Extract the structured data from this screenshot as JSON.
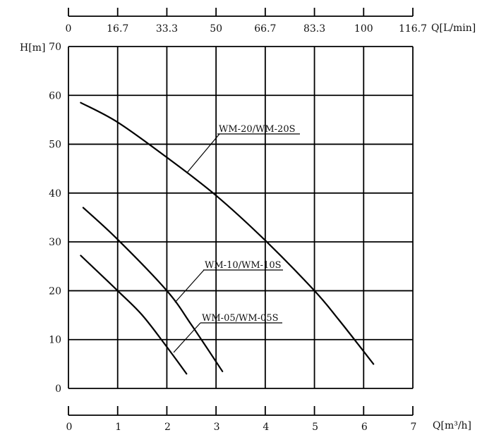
{
  "chart_data": {
    "type": "line",
    "xlabel": "Q[m³/h]",
    "x2label": "Q[L/min]",
    "ylabel": "H[m]",
    "xlim": [
      0,
      7
    ],
    "ylim": [
      0,
      70
    ],
    "grid": true,
    "x_ticks": [
      "0",
      "1",
      "2",
      "3",
      "4",
      "5",
      "6",
      "7"
    ],
    "x2_ticks": [
      "0",
      "16.7",
      "33.3",
      "50",
      "66.7",
      "83.3",
      "100",
      "116.7"
    ],
    "y_ticks": [
      "0",
      "10",
      "20",
      "30",
      "40",
      "50",
      "60",
      "70"
    ],
    "series": [
      {
        "name": "WM-20/WM-20S",
        "x": [
          0.25,
          1.0,
          2.0,
          3.0,
          4.0,
          5.0,
          5.5,
          6.2
        ],
        "y": [
          58.5,
          54.5,
          47.3,
          39.5,
          30.3,
          20.0,
          14.0,
          5.0
        ]
      },
      {
        "name": "WM-10/WM-10S",
        "x": [
          0.3,
          1.0,
          2.0,
          2.5,
          3.13
        ],
        "y": [
          37.0,
          30.5,
          20.0,
          13.0,
          3.5
        ]
      },
      {
        "name": "WM-05/WM-05S",
        "x": [
          0.25,
          1.0,
          1.5,
          2.0,
          2.4
        ],
        "y": [
          27.2,
          20.0,
          15.0,
          8.5,
          3.0
        ]
      }
    ]
  }
}
